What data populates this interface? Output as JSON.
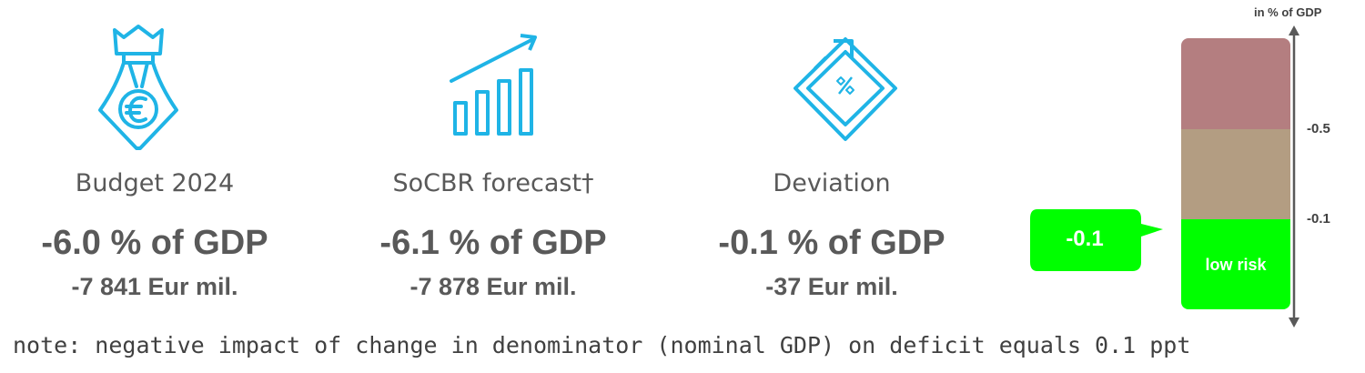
{
  "cards": [
    {
      "icon": "money-bag-euro-icon",
      "label": "Budget 2024",
      "pct": "-6.0 % of GDP",
      "eur": "-7 841 Eur mil."
    },
    {
      "icon": "rising-bar-chart-icon",
      "label": "SoCBR forecast†",
      "pct": "-6.1 % of GDP",
      "eur": "-7 878 Eur mil."
    },
    {
      "icon": "percent-tag-icon",
      "label": "Deviation",
      "pct": "-0.1 % of GDP",
      "eur": "-37 Eur mil."
    }
  ],
  "note": "note: negative impact of change in denominator (nominal GDP) on deficit equals 0.1 ppt",
  "risk_scale": {
    "title": "in % of GDP",
    "ticks": [
      "-0.5",
      "-0.1"
    ],
    "low_label": "low risk",
    "current_value": "-0.1",
    "colors": {
      "high": "#b47e80",
      "medium": "#b39d82",
      "low": "#00ff00",
      "icons": "#1fb4e6"
    }
  }
}
